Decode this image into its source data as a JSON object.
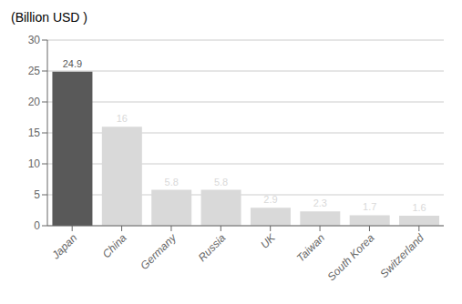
{
  "chart_data": {
    "type": "bar",
    "title": "(Billion USD )",
    "categories": [
      "Japan",
      "China",
      "Germany",
      "Russia",
      "UK",
      "Taiwan",
      "South Korea",
      "Switzerland"
    ],
    "values": [
      24.9,
      16,
      5.8,
      5.8,
      2.9,
      2.3,
      1.7,
      1.6
    ],
    "colors": [
      "#595959",
      "#d9d9d9",
      "#d9d9d9",
      "#d9d9d9",
      "#d9d9d9",
      "#d9d9d9",
      "#d9d9d9",
      "#d9d9d9"
    ],
    "ylim": [
      0,
      30
    ],
    "yticks": [
      0,
      5,
      10,
      15,
      20,
      25,
      30
    ],
    "grid": true,
    "data_labels": true
  }
}
